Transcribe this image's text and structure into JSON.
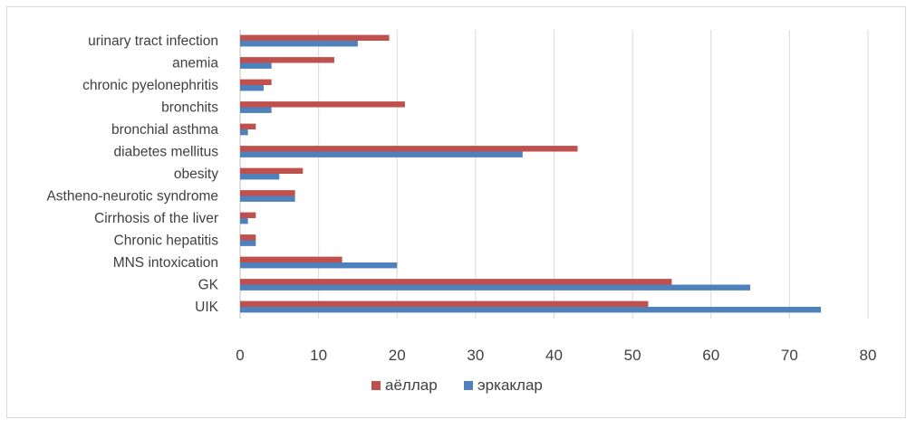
{
  "chart_data": {
    "type": "bar",
    "orientation": "horizontal",
    "categories": [
      "urinary tract infection",
      "anemia",
      "chronic pyelonephritis",
      "bronchits",
      "bronchial asthma",
      "diabetes mellitus",
      "obesity",
      "Astheno-neurotic syndrome",
      "Cirrhosis of the liver",
      "Chronic hepatitis",
      "MNS intoxication",
      "GK",
      "UIK"
    ],
    "series": [
      {
        "name": "аёллар",
        "color": "#c0504d",
        "values": [
          19,
          12,
          4,
          21,
          2,
          43,
          8,
          7,
          2,
          2,
          13,
          55,
          52
        ]
      },
      {
        "name": "эркаклар",
        "color": "#4f81bd",
        "values": [
          15,
          4,
          3,
          4,
          1,
          36,
          5,
          7,
          1,
          2,
          20,
          65,
          74
        ]
      }
    ],
    "xlim": [
      0,
      80
    ],
    "xticks": [
      "0",
      "10",
      "20",
      "30",
      "40",
      "50",
      "60",
      "70",
      "80"
    ],
    "grid": true,
    "legend_position": "bottom"
  }
}
